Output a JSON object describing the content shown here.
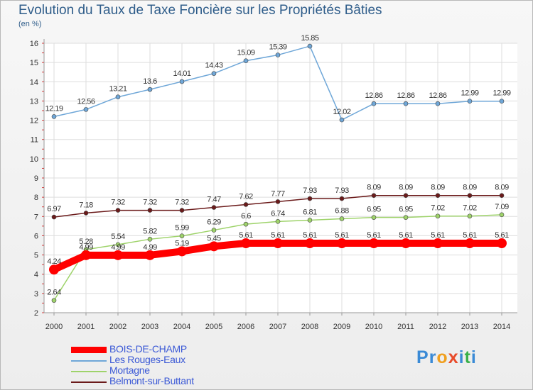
{
  "title": "Evolution du Taux de Taxe Foncière sur les Propriétés Bâties",
  "subtitle": "(en %)",
  "logo": {
    "text": "Proxiti",
    "letters": [
      "P",
      "r",
      "o",
      "x",
      "i",
      "t",
      "i"
    ],
    "colors": [
      "#3a8ad6",
      "#3a8ad6",
      "#f0a020",
      "#e84b2a",
      "#3a8ad6",
      "#3ab04a",
      "#3a8ad6"
    ]
  },
  "chart_data": {
    "type": "line",
    "title": "Evolution du Taux de Taxe Foncière sur les Propriétés Bâties",
    "ylabel": "(en %)",
    "xlabel": "",
    "ylim": [
      2,
      16
    ],
    "yticks": [
      "2",
      "3",
      "4",
      "5",
      "6",
      "7",
      "8",
      "9",
      "10",
      "11",
      "12",
      "13",
      "14",
      "15",
      "16"
    ],
    "x": [
      "2000",
      "2001",
      "2002",
      "2003",
      "2004",
      "2005",
      "2006",
      "2007",
      "2008",
      "2009",
      "2010",
      "2011",
      "2012",
      "2013",
      "2014"
    ],
    "legend_position": "bottom-left",
    "series": [
      {
        "name": "BOIS-DE-CHAMP",
        "color": "#ff0000",
        "values": [
          4.24,
          4.99,
          4.99,
          4.99,
          5.19,
          5.45,
          5.61,
          5.61,
          5.61,
          5.61,
          5.61,
          5.61,
          5.61,
          5.61,
          5.61
        ],
        "labels": [
          "4.24",
          "4.99",
          "4.99",
          "4.99",
          "5.19",
          "5.45",
          "5.61",
          "5.61",
          "5.61",
          "5.61",
          "5.61",
          "5.61",
          "5.61",
          "5.61",
          "5.61"
        ]
      },
      {
        "name": "Les Rouges-Eaux",
        "color": "#6fa7d8",
        "values": [
          12.19,
          12.56,
          13.21,
          13.6,
          14.01,
          14.43,
          15.09,
          15.39,
          15.85,
          12.02,
          12.86,
          12.86,
          12.86,
          12.99,
          12.99
        ],
        "labels": [
          "12.19",
          "12.56",
          "13.21",
          "13.6",
          "14.01",
          "14.43",
          "15.09",
          "15.39",
          "15.85",
          "12.02",
          "12.86",
          "12.86",
          "12.86",
          "12.99",
          "12.99"
        ]
      },
      {
        "name": "Mortagne",
        "color": "#9ed36a",
        "values": [
          2.64,
          5.28,
          5.54,
          5.82,
          5.99,
          6.29,
          6.6,
          6.74,
          6.81,
          6.88,
          6.95,
          6.95,
          7.02,
          7.02,
          7.09
        ],
        "labels": [
          "2.64",
          "5.28",
          "5.54",
          "5.82",
          "5.99",
          "6.29",
          "6.6",
          "6.74",
          "6.81",
          "6.88",
          "6.95",
          "6.95",
          "7.02",
          "7.02",
          "7.09"
        ]
      },
      {
        "name": "Belmont-sur-Buttant",
        "color": "#6b1a1a",
        "values": [
          6.97,
          7.18,
          7.32,
          7.32,
          7.32,
          7.47,
          7.62,
          7.77,
          7.93,
          7.93,
          8.09,
          8.09,
          8.09,
          8.09,
          8.09
        ],
        "labels": [
          "6.97",
          "7.18",
          "7.32",
          "7.32",
          "7.32",
          "7.47",
          "7.62",
          "7.77",
          "7.93",
          "7.93",
          "8.09",
          "8.09",
          "8.09",
          "8.09",
          "8.09"
        ]
      }
    ]
  }
}
